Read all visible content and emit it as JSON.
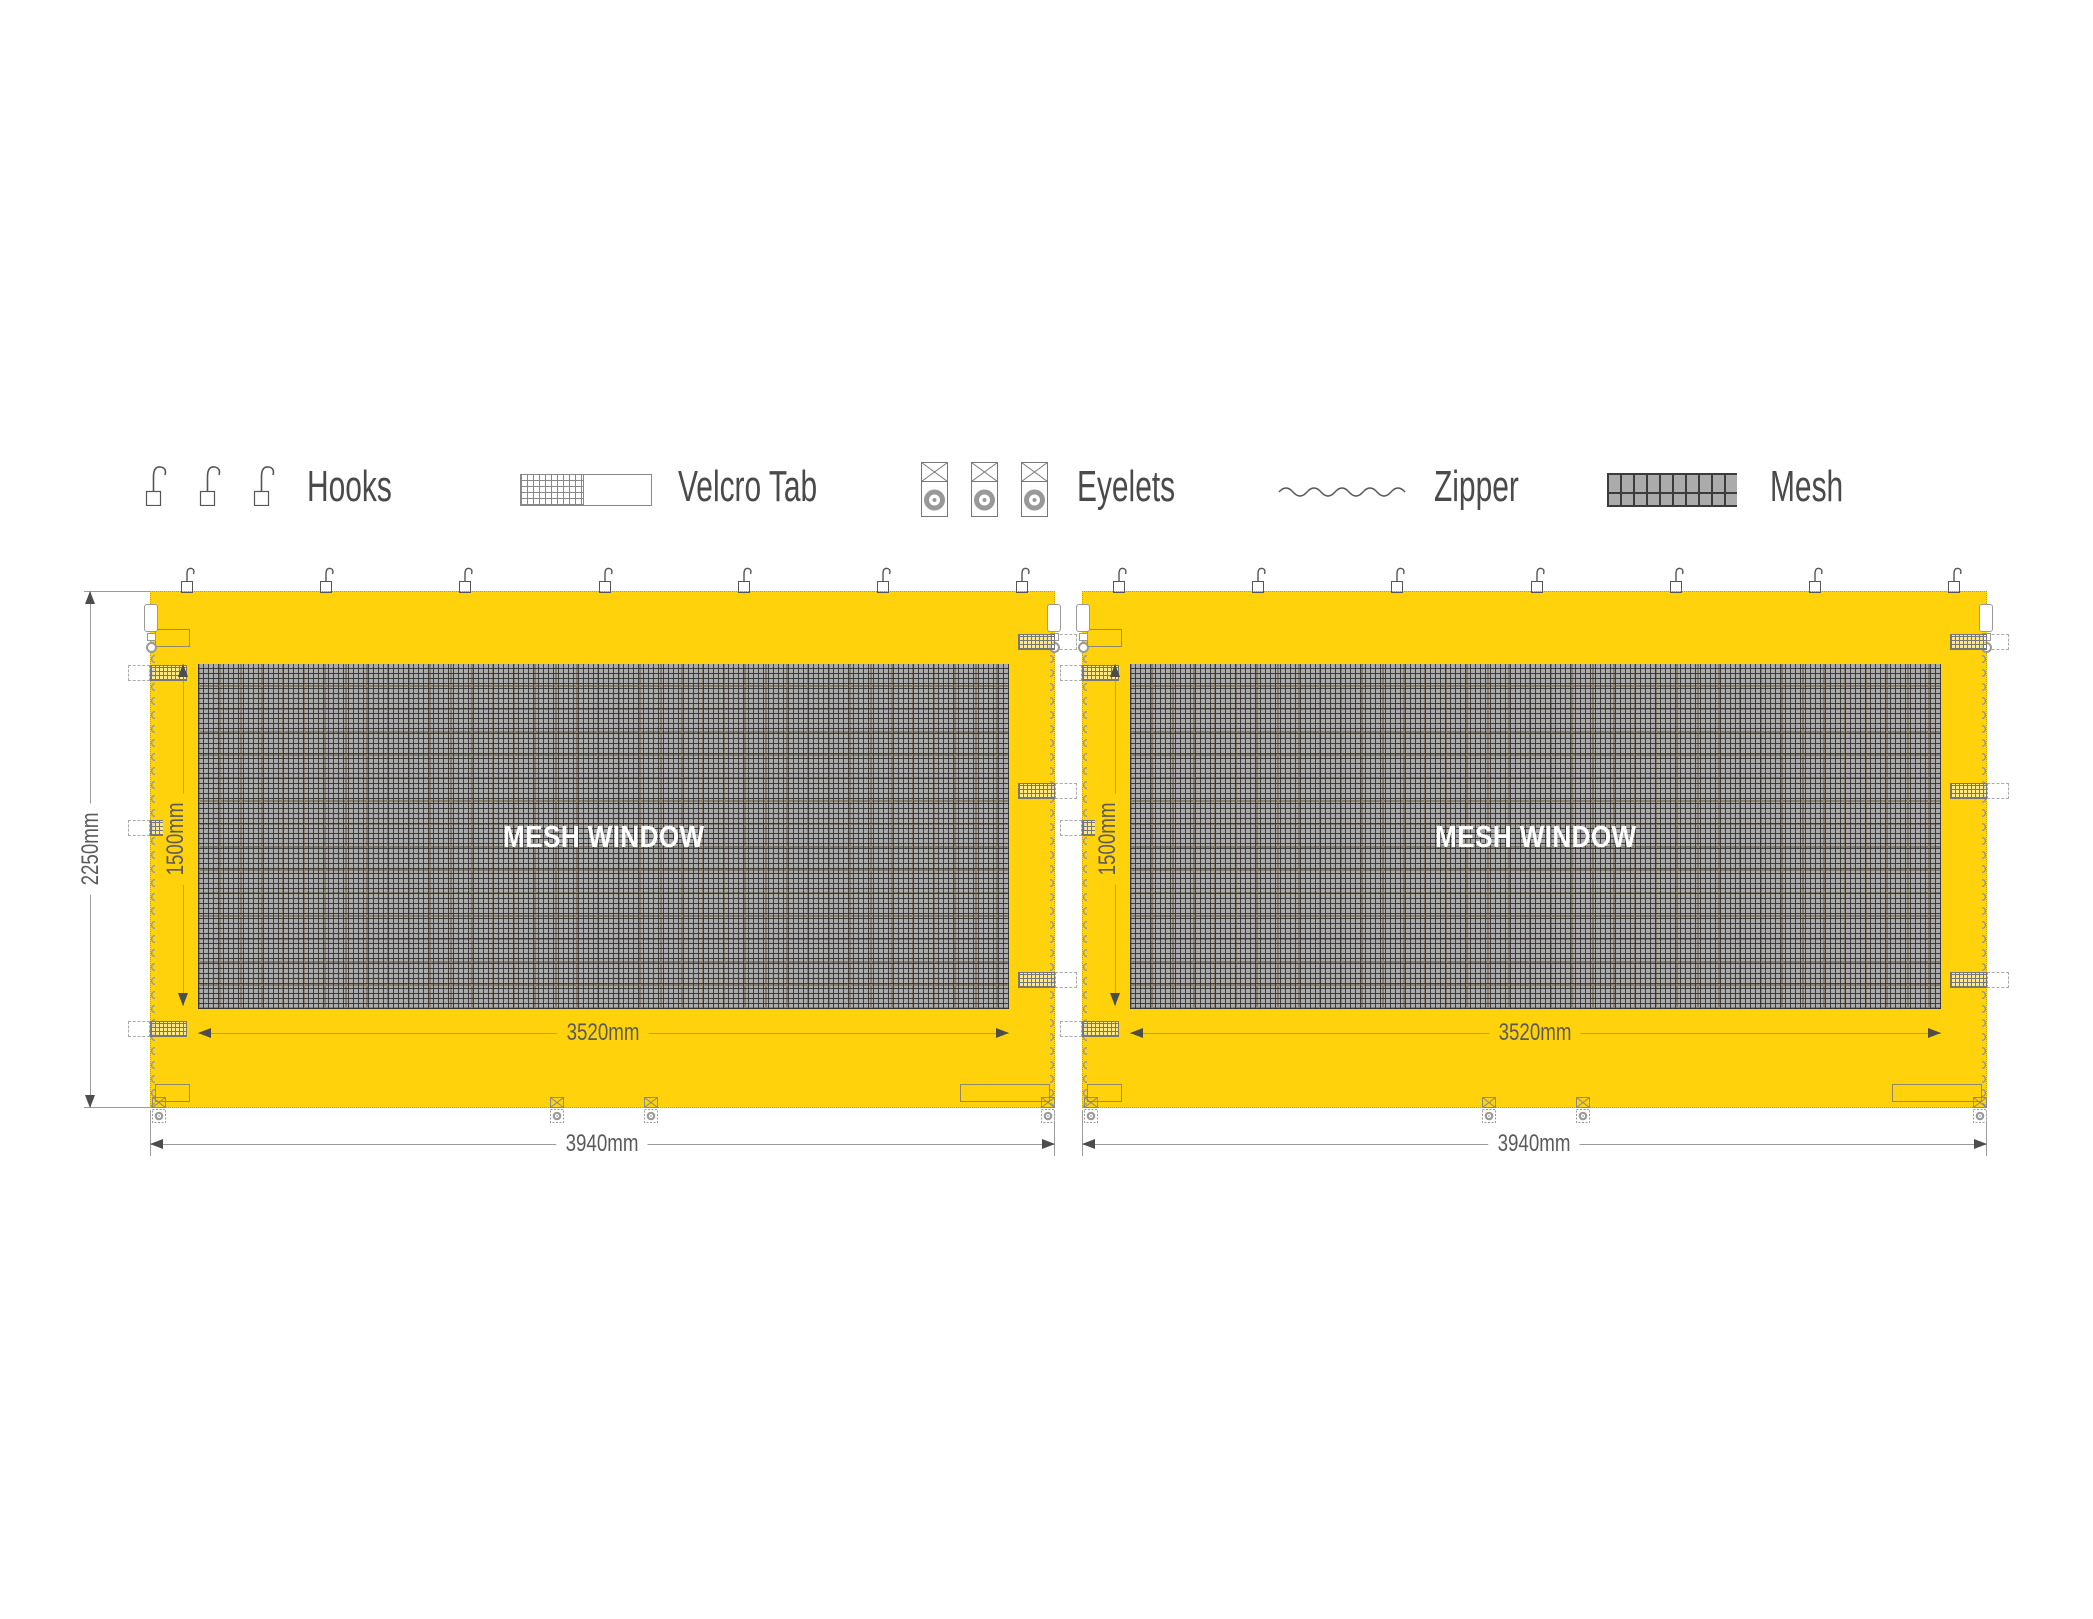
{
  "legend": {
    "hooks_label": "Hooks",
    "velcro_label": "Velcro Tab",
    "eyelets_label": "Eyelets",
    "zipper_label": "Zipper",
    "mesh_label": "Mesh"
  },
  "dimensions": {
    "total_height": "2250mm",
    "total_width": "3940mm",
    "window_width": "3520mm",
    "window_height": "1500mm"
  },
  "panels": [
    {
      "name": "left",
      "mesh_label": "MESH WINDOW",
      "total_width": "3940mm",
      "window_width": "3520mm",
      "window_height": "1500mm"
    },
    {
      "name": "right",
      "mesh_label": "MESH WINDOW",
      "total_width": "3940mm",
      "window_width": "3520mm",
      "window_height": "1500mm"
    }
  ],
  "colors": {
    "panel_yellow": "#FFD20B",
    "mesh_gray": "#ABABAB",
    "mesh_accent": "#8A8170",
    "dim_text": "#5A5A5A",
    "line_gray": "#9B9B9B",
    "label_text": "#4A4A4A",
    "window_label": "#FFFFFF"
  }
}
